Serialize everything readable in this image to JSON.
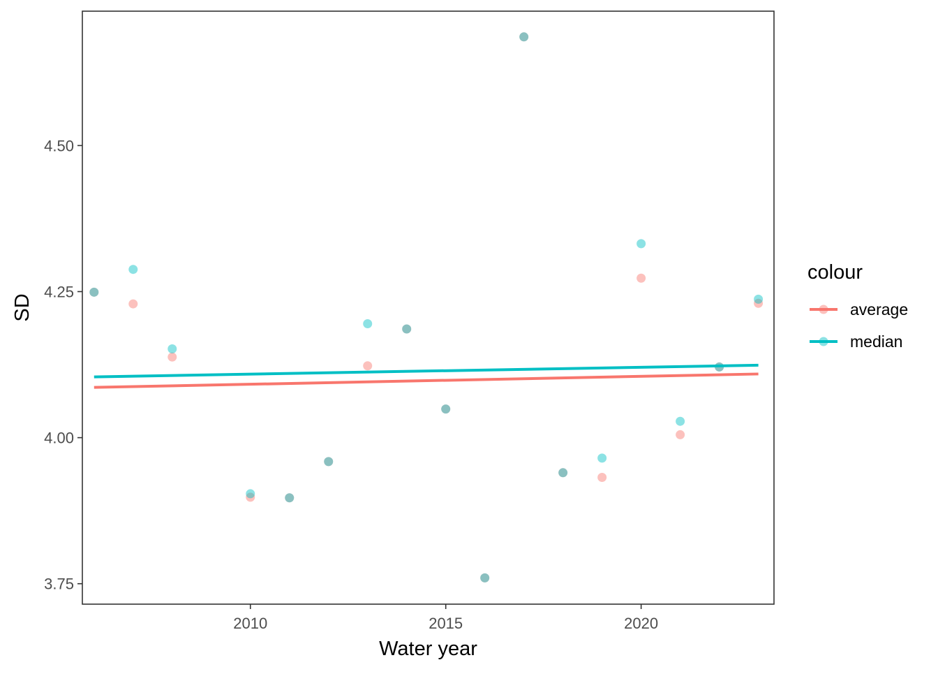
{
  "chart_data": {
    "type": "scatter",
    "xlabel": "Water year",
    "ylabel": "SD",
    "xlim": [
      2005.7,
      2023.4
    ],
    "ylim": [
      3.715,
      4.73
    ],
    "x_ticks": [
      2010,
      2015,
      2020
    ],
    "x_tick_labels": [
      "2010",
      "2015",
      "2020"
    ],
    "y_ticks": [
      3.75,
      4.0,
      4.25,
      4.5
    ],
    "y_tick_labels": [
      "3.75",
      "4.00",
      "4.25",
      "4.50"
    ],
    "grid": false,
    "legend": {
      "title": "colour",
      "position": "right"
    },
    "series": [
      {
        "name": "average",
        "color": "#F8766D",
        "x": [
          2006,
          2007,
          2008,
          2010,
          2011,
          2012,
          2013,
          2014,
          2015,
          2016,
          2017,
          2018,
          2019,
          2020,
          2021,
          2022,
          2023
        ],
        "y": [
          4.249,
          4.229,
          4.138,
          3.898,
          3.897,
          3.959,
          4.123,
          4.186,
          4.049,
          3.76,
          4.686,
          3.94,
          3.932,
          4.273,
          4.005,
          4.121,
          4.23
        ],
        "trend": {
          "x": [
            2006,
            2023
          ],
          "y": [
            4.086,
            4.109
          ]
        }
      },
      {
        "name": "median",
        "color": "#00BFC4",
        "x": [
          2006,
          2007,
          2008,
          2010,
          2011,
          2012,
          2013,
          2014,
          2015,
          2016,
          2017,
          2018,
          2019,
          2020,
          2021,
          2022,
          2023
        ],
        "y": [
          4.249,
          4.288,
          4.152,
          3.904,
          3.897,
          3.959,
          4.195,
          4.186,
          4.049,
          3.76,
          4.686,
          3.94,
          3.965,
          4.332,
          4.028,
          4.121,
          4.237
        ],
        "trend": {
          "x": [
            2006,
            2023
          ],
          "y": [
            4.104,
            4.124
          ]
        }
      }
    ]
  }
}
